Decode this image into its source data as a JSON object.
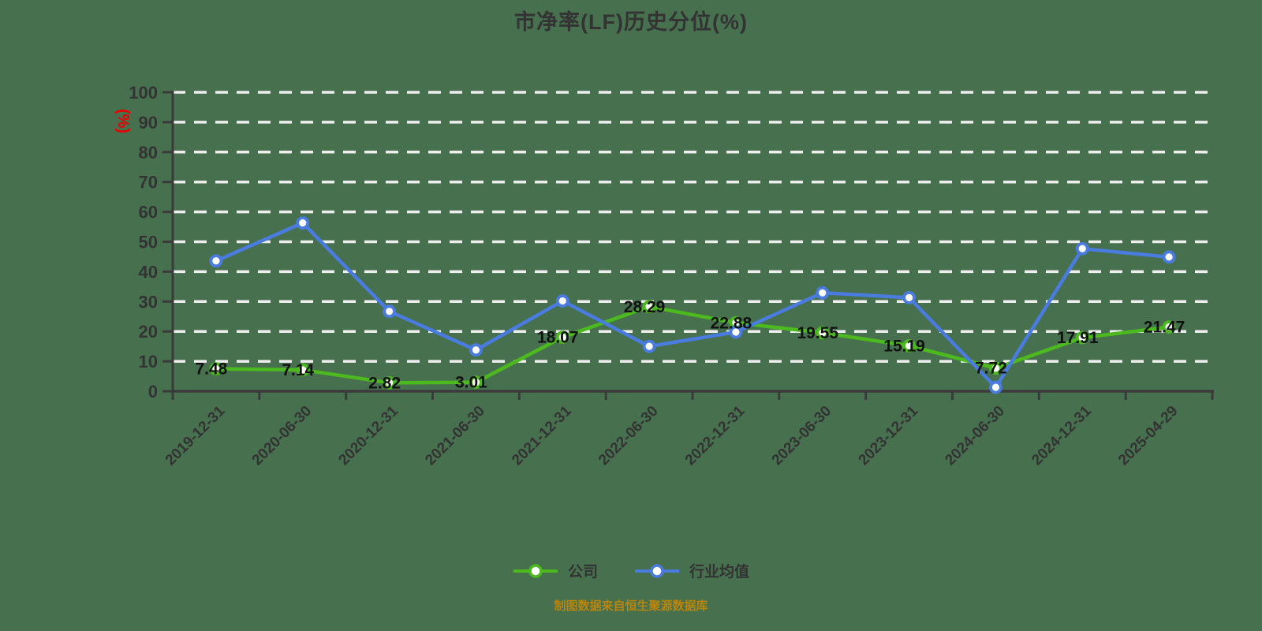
{
  "title": "市净率(LF)历史分位(%)",
  "footer": "制图数据来自恒生聚源数据库",
  "colors": {
    "background": "#47704f",
    "text": "#333333",
    "axis": "#3a3a3a",
    "grid": "#eeeeee",
    "company": "#4cba1f",
    "industry": "#4a7cdf",
    "unit_label": "#e60000",
    "data_label": "#111111",
    "footer_text": "#b8860d",
    "marker_fill": "#ffffff"
  },
  "chart_data": {
    "type": "line",
    "title": "市净率(LF)历史分位(%)",
    "ylabel": "(%)",
    "ylim": [
      0,
      100
    ],
    "ytick_step": 10,
    "grid": true,
    "legend_position": "bottom",
    "categories": [
      "2019-12-31",
      "2020-06-30",
      "2020-12-31",
      "2021-06-30",
      "2021-12-31",
      "2022-06-30",
      "2022-12-31",
      "2023-06-30",
      "2023-12-31",
      "2024-06-30",
      "2024-12-31",
      "2025-04-29"
    ],
    "series": [
      {
        "name": "公司",
        "color_key": "company",
        "show_labels": true,
        "values": [
          7.48,
          7.14,
          2.82,
          3.01,
          18.07,
          28.29,
          22.88,
          19.55,
          15.19,
          7.72,
          17.91,
          21.47
        ]
      },
      {
        "name": "行业均值",
        "color_key": "industry",
        "show_labels": false,
        "values": [
          43.6,
          56.3,
          26.7,
          13.8,
          30.2,
          15.0,
          19.8,
          32.9,
          31.3,
          1.3,
          47.7,
          44.9
        ]
      }
    ]
  }
}
